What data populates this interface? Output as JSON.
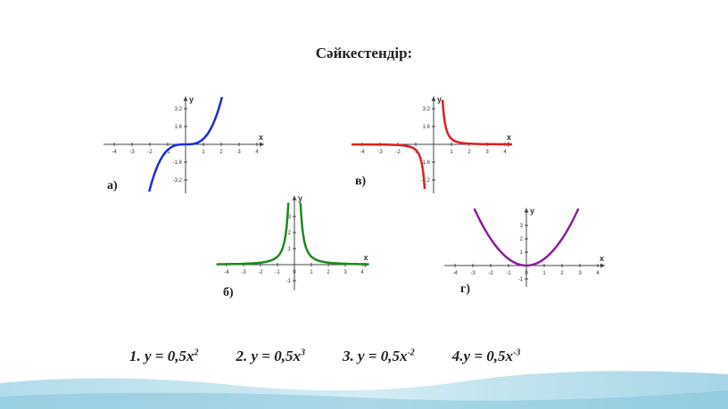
{
  "title": "Сәйкестендір:",
  "graphs": [
    {
      "label": "а)",
      "x_axis": "x",
      "y_axis": "y",
      "xticks": [
        "-4",
        "-3",
        "-2",
        "-1",
        "1",
        "2",
        "3",
        "4"
      ],
      "yticks": [
        "3.2",
        "1.6",
        "-1.6",
        "-3.2"
      ]
    },
    {
      "label": "б)",
      "x_axis": "x",
      "y_axis": "y",
      "xticks": [
        "-4",
        "-3",
        "-2",
        "-1",
        "0",
        "1",
        "2",
        "3",
        "4"
      ],
      "yticks": [
        "3",
        "2",
        "1",
        "-1"
      ]
    },
    {
      "label": "в)",
      "x_axis": "x",
      "y_axis": "y",
      "xticks": [
        "-4",
        "-3",
        "-2",
        "-1",
        "1",
        "2",
        "3",
        "4"
      ],
      "yticks": [
        "3.2",
        "1.6",
        "-1.6",
        "-3.2"
      ]
    },
    {
      "label": "г)",
      "x_axis": "x",
      "y_axis": "y",
      "xticks": [
        "-4",
        "-3",
        "-2",
        "-1",
        "0",
        "1",
        "2",
        "3",
        "4"
      ],
      "yticks": [
        "3",
        "2",
        "1",
        "-1"
      ]
    }
  ],
  "formulas": [
    {
      "text": "1. y = 0,5x",
      "power": "2"
    },
    {
      "text": "2. y = 0,5x",
      "power": "3"
    },
    {
      "text": "3. y = 0,5x",
      "power": "-2"
    },
    {
      "text": "4.y = 0,5x",
      "power": "-3"
    }
  ]
}
